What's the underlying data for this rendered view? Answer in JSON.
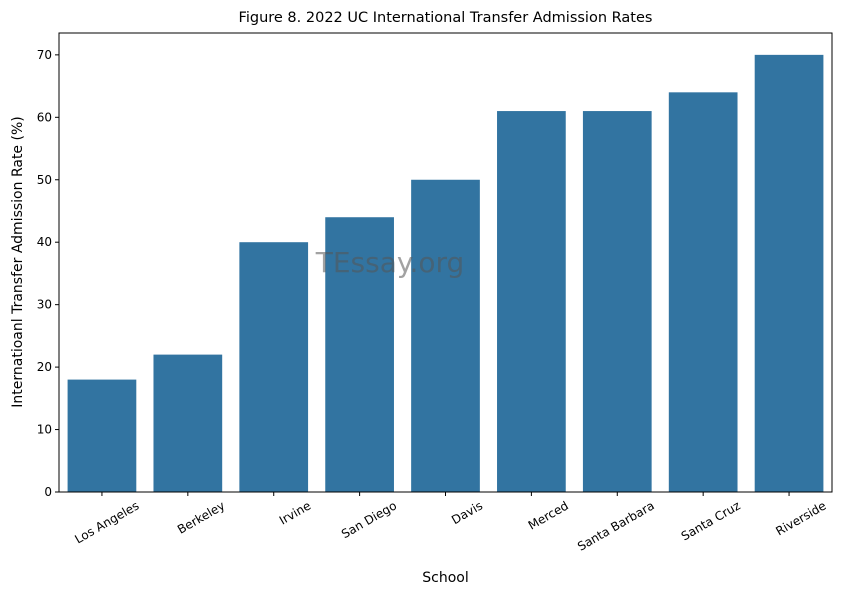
{
  "chart_data": {
    "type": "bar",
    "title": "Figure 8. 2022 UC International Transfer Admission Rates",
    "xlabel": "School",
    "ylabel": "Internatioanl Transfer Admission Rate (%)",
    "categories": [
      "Los Angeles",
      "Berkeley",
      "Irvine",
      "San Diego",
      "Davis",
      "Merced",
      "Santa Barbara",
      "Santa Cruz",
      "Riverside"
    ],
    "values": [
      18,
      22,
      40,
      44,
      50,
      61,
      61,
      64,
      70
    ],
    "ylim": [
      0,
      73.5
    ],
    "yticks": [
      0,
      10,
      20,
      30,
      40,
      50,
      60,
      70
    ],
    "bar_color": "#3274a1",
    "grid": false,
    "legend": "none"
  },
  "watermark": "TEssay.org"
}
